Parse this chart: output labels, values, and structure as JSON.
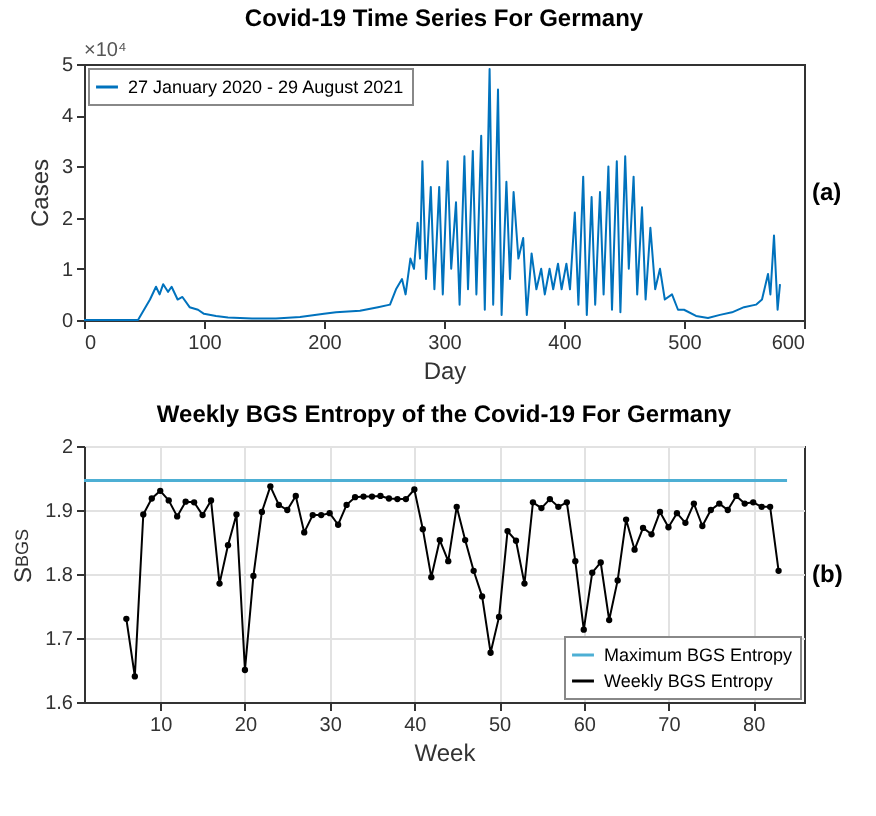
{
  "chart_data": [
    {
      "type": "line",
      "title": "Covid-19 Time Series For Germany",
      "xlabel": "Day",
      "ylabel": "Cases",
      "xlim": [
        0,
        600
      ],
      "xticks": [
        0,
        100,
        200,
        300,
        400,
        500,
        600
      ],
      "ylim": [
        0,
        5
      ],
      "yticks": [
        0,
        1,
        2,
        3,
        4,
        5
      ],
      "grid": false,
      "legend": "top left",
      "annotations": [
        "×10⁴",
        "(a)"
      ],
      "series": [
        {
          "name": "27 January 2020 - 29 August 2021",
          "color": "#0072bd",
          "marker": "none",
          "x": [
            0,
            45,
            50,
            55,
            60,
            63,
            66,
            70,
            73,
            78,
            82,
            88,
            95,
            100,
            110,
            120,
            140,
            160,
            180,
            200,
            210,
            230,
            245,
            255,
            260,
            265,
            268,
            272,
            275,
            278,
            280,
            282,
            285,
            289,
            292,
            296,
            299,
            303,
            306,
            310,
            313,
            317,
            320,
            324,
            327,
            331,
            334,
            338,
            341,
            345,
            348,
            352,
            355,
            358,
            362,
            366,
            369,
            373,
            377,
            381,
            384,
            388,
            391,
            395,
            398,
            402,
            405,
            409,
            412,
            416,
            419,
            423,
            426,
            430,
            433,
            437,
            440,
            444,
            447,
            451,
            454,
            458,
            461,
            465,
            468,
            472,
            476,
            480,
            484,
            490,
            495,
            500,
            510,
            520,
            530,
            540,
            550,
            560,
            565,
            570,
            572,
            575,
            578,
            580
          ],
          "values": [
            0,
            0,
            0.2,
            0.4,
            0.65,
            0.5,
            0.7,
            0.55,
            0.65,
            0.4,
            0.45,
            0.25,
            0.2,
            0.12,
            0.08,
            0.05,
            0.03,
            0.03,
            0.06,
            0.12,
            0.15,
            0.18,
            0.25,
            0.3,
            0.6,
            0.8,
            0.5,
            1.2,
            1,
            1.9,
            1.2,
            3.1,
            0.8,
            2.6,
            0.6,
            2.6,
            0.5,
            3.1,
            1,
            2.3,
            0.3,
            3.2,
            0.6,
            3.3,
            0.5,
            3.6,
            0.2,
            4.9,
            0.3,
            4.5,
            0.1,
            2.7,
            0.8,
            2.5,
            1.2,
            1.6,
            0.1,
            1.3,
            0.6,
            1,
            0.5,
            1,
            0.6,
            1.1,
            0.6,
            1.1,
            0.6,
            2.1,
            0.3,
            2.8,
            0.1,
            2.4,
            0.3,
            2.5,
            0.5,
            3,
            0.2,
            3.1,
            0.15,
            3.2,
            1,
            2.8,
            0.5,
            2.2,
            0.4,
            1.8,
            0.6,
            1,
            0.4,
            0.5,
            0.2,
            0.2,
            0.08,
            0.04,
            0.1,
            0.15,
            0.25,
            0.3,
            0.4,
            0.9,
            0.5,
            1.65,
            0.2,
            0.7
          ]
        }
      ]
    },
    {
      "type": "line",
      "title": "Weekly BGS Entropy of the Covid-19 For Germany",
      "xlabel": "Week",
      "ylabel": "S$_{BGS}$",
      "xlim": [
        1,
        86
      ],
      "xticks": [
        10,
        20,
        30,
        40,
        50,
        60,
        70,
        80
      ],
      "ylim": [
        1.6,
        2
      ],
      "yticks": [
        1.6,
        1.7,
        1.8,
        1.9,
        2
      ],
      "grid": true,
      "legend": "bottom right",
      "annotations": [
        "(b)"
      ],
      "series": [
        {
          "name": "Maximum BGS Entropy",
          "color": "#4dafd4",
          "marker": "none",
          "x": [
            1,
            84
          ],
          "values": [
            1.946,
            1.946
          ]
        },
        {
          "name": "Weekly BGS Entropy",
          "color": "#000000",
          "marker": "circle",
          "x": [
            6,
            7,
            8,
            9,
            10,
            11,
            12,
            13,
            14,
            15,
            16,
            17,
            18,
            19,
            20,
            21,
            22,
            23,
            24,
            25,
            26,
            27,
            28,
            29,
            30,
            31,
            32,
            33,
            34,
            35,
            36,
            37,
            38,
            39,
            40,
            41,
            42,
            43,
            44,
            45,
            46,
            47,
            48,
            49,
            50,
            51,
            52,
            53,
            54,
            55,
            56,
            57,
            58,
            59,
            60,
            61,
            62,
            63,
            64,
            65,
            66,
            67,
            68,
            69,
            70,
            71,
            72,
            73,
            74,
            75,
            76,
            77,
            78,
            79,
            80,
            81,
            82,
            83
          ],
          "values": [
            1.73,
            1.64,
            1.893,
            1.918,
            1.93,
            1.915,
            1.89,
            1.913,
            1.912,
            1.892,
            1.915,
            1.785,
            1.845,
            1.893,
            1.65,
            1.797,
            1.897,
            1.937,
            1.908,
            1.9,
            1.922,
            1.865,
            1.892,
            1.892,
            1.895,
            1.877,
            1.908,
            1.92,
            1.921,
            1.921,
            1.922,
            1.918,
            1.917,
            1.917,
            1.932,
            1.87,
            1.795,
            1.853,
            1.82,
            1.905,
            1.853,
            1.805,
            1.765,
            1.677,
            1.733,
            1.867,
            1.852,
            1.785,
            1.912,
            1.903,
            1.917,
            1.905,
            1.912,
            1.82,
            1.713,
            1.802,
            1.818,
            1.728,
            1.79,
            1.885,
            1.838,
            1.872,
            1.862,
            1.897,
            1.873,
            1.895,
            1.88,
            1.91,
            1.875,
            1.9,
            1.91,
            1.9,
            1.922,
            1.91,
            1.912,
            1.905,
            1.905,
            1.805
          ]
        }
      ]
    }
  ]
}
